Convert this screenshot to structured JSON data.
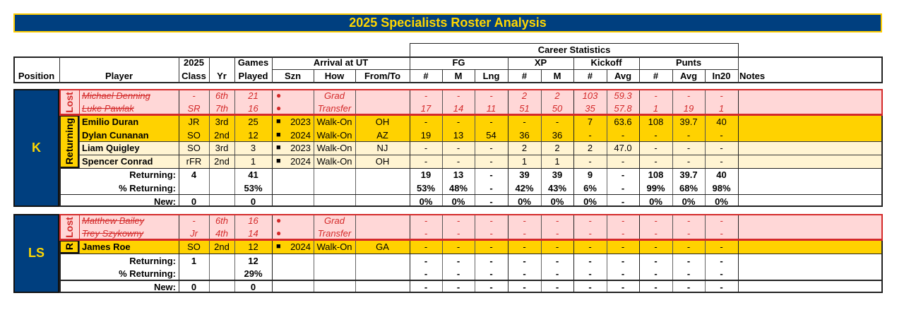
{
  "title": "2025 Specialists Roster Analysis",
  "headers": {
    "position": "Position",
    "player": "Player",
    "class_top": "2025",
    "class_bottom": "Class",
    "yr": "Yr",
    "games_top": "Games",
    "games_bottom": "Played",
    "arrival": "Arrival at UT",
    "szn": "Szn",
    "how": "How",
    "from_to": "From/To",
    "career": "Career Statistics",
    "fg": "FG",
    "xp": "XP",
    "kickoff": "Kickoff",
    "punts": "Punts",
    "num": "#",
    "m": "M",
    "lng": "Lng",
    "avg": "Avg",
    "in20": "In20",
    "notes": "Notes"
  },
  "sections": [
    {
      "position": "K",
      "lost_label": "Lost",
      "returning_label": "Returning",
      "lost": [
        {
          "name": "Michael Denning",
          "class": "-",
          "yr": "6th",
          "games": "21",
          "marker": "●",
          "szn": "",
          "how": "Grad",
          "from": "",
          "stats": [
            "-",
            "-",
            "-",
            "2",
            "2",
            "103",
            "59.3",
            "-",
            "-",
            "-"
          ]
        },
        {
          "name": "Luke Pawlak",
          "class": "SR",
          "yr": "7th",
          "games": "16",
          "marker": "●",
          "szn": "",
          "how": "Transfer",
          "from": "",
          "stats": [
            "17",
            "14",
            "11",
            "51",
            "50",
            "35",
            "57.8",
            "1",
            "19",
            "1"
          ]
        }
      ],
      "returning": [
        {
          "name": "Emilio Duran",
          "class": "JR",
          "yr": "3rd",
          "games": "25",
          "marker": "■",
          "szn": "2023",
          "how": "Walk-On",
          "from": "OH",
          "stats": [
            "-",
            "-",
            "-",
            "-",
            "-",
            "7",
            "63.6",
            "108",
            "39.7",
            "40"
          ],
          "tone": "gold"
        },
        {
          "name": "Dylan Cunanan",
          "class": "SO",
          "yr": "2nd",
          "games": "12",
          "marker": "■",
          "szn": "2024",
          "how": "Walk-On",
          "from": "AZ",
          "stats": [
            "19",
            "13",
            "54",
            "36",
            "36",
            "-",
            "-",
            "-",
            "-",
            "-"
          ],
          "tone": "gold"
        },
        {
          "name": "Liam Quigley",
          "class": "SO",
          "yr": "3rd",
          "games": "3",
          "marker": "■",
          "szn": "2023",
          "how": "Walk-On",
          "from": "NJ",
          "stats": [
            "-",
            "-",
            "-",
            "2",
            "2",
            "2",
            "47.0",
            "-",
            "-",
            "-"
          ],
          "tone": "cream"
        },
        {
          "name": "Spencer Conrad",
          "class": "rFR",
          "yr": "2nd",
          "games": "1",
          "marker": "■",
          "szn": "2024",
          "how": "Walk-On",
          "from": "OH",
          "stats": [
            "-",
            "-",
            "-",
            "1",
            "1",
            "-",
            "-",
            "-",
            "-",
            "-"
          ],
          "tone": "cream"
        }
      ],
      "summary": {
        "returning_label": "Returning:",
        "returning_count": "4",
        "returning_games": "41",
        "returning_stats": [
          "19",
          "13",
          "-",
          "39",
          "39",
          "9",
          "-",
          "108",
          "39.7",
          "40"
        ],
        "pct_label": "% Returning:",
        "pct_games": "53%",
        "pct_stats": [
          "53%",
          "48%",
          "-",
          "42%",
          "43%",
          "6%",
          "-",
          "99%",
          "68%",
          "98%"
        ],
        "new_label": "New:",
        "new_count": "0",
        "new_games": "0",
        "new_stats": [
          "0%",
          "0%",
          "-",
          "0%",
          "0%",
          "0%",
          "-",
          "0%",
          "0%",
          "0%"
        ]
      }
    },
    {
      "position": "LS",
      "lost_label": "Lost",
      "returning_label": "R",
      "lost": [
        {
          "name": "Matthew Bailey",
          "class": "-",
          "yr": "6th",
          "games": "16",
          "marker": "●",
          "szn": "",
          "how": "Grad",
          "from": "",
          "stats": [
            "-",
            "-",
            "-",
            "-",
            "-",
            "-",
            "-",
            "-",
            "-",
            "-"
          ]
        },
        {
          "name": "Trey Szykowny",
          "class": "Jr",
          "yr": "4th",
          "games": "14",
          "marker": "●",
          "szn": "",
          "how": "Transfer",
          "from": "",
          "stats": [
            "-",
            "-",
            "-",
            "-",
            "-",
            "-",
            "-",
            "-",
            "-",
            "-"
          ]
        }
      ],
      "returning": [
        {
          "name": "James Roe",
          "class": "SO",
          "yr": "2nd",
          "games": "12",
          "marker": "■",
          "szn": "2024",
          "how": "Walk-On",
          "from": "GA",
          "stats": [
            "-",
            "-",
            "-",
            "-",
            "-",
            "-",
            "-",
            "-",
            "-",
            "-"
          ],
          "tone": "gold"
        }
      ],
      "summary": {
        "returning_label": "Returning:",
        "returning_count": "1",
        "returning_games": "12",
        "returning_stats": [
          "-",
          "-",
          "-",
          "-",
          "-",
          "-",
          "-",
          "-",
          "-",
          "-"
        ],
        "pct_label": "% Returning:",
        "pct_games": "29%",
        "pct_stats": [
          "-",
          "-",
          "-",
          "-",
          "-",
          "-",
          "-",
          "-",
          "-",
          "-"
        ],
        "new_label": "New:",
        "new_count": "0",
        "new_games": "0",
        "new_stats": [
          "-",
          "-",
          "-",
          "-",
          "-",
          "-",
          "-",
          "-",
          "-",
          "-"
        ]
      }
    }
  ],
  "colors": {
    "navy": "#003f7f",
    "gold_text": "#ffd700",
    "gold_fill": "#ffd200",
    "cream_fill": "#fff4d2",
    "lost_fill": "#ffd7d7",
    "lost_red": "#d42a2a"
  }
}
